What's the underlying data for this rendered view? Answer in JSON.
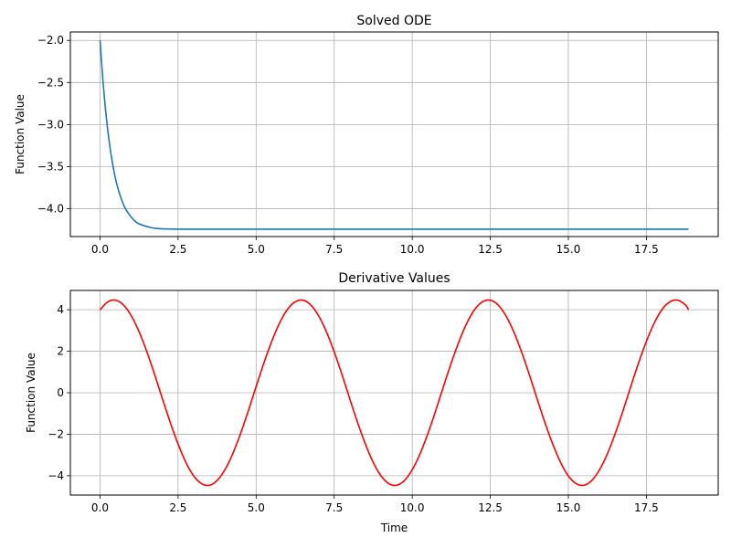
{
  "chart_data": [
    {
      "type": "line",
      "title": "Solved ODE",
      "xlabel": "",
      "ylabel": "Function Value",
      "xlim": [
        -0.95,
        19.8
      ],
      "ylim": [
        -4.33,
        -1.9
      ],
      "xticks": [
        0.0,
        2.5,
        5.0,
        7.5,
        10.0,
        12.5,
        15.0,
        17.5
      ],
      "xtick_labels": [
        "0.0",
        "2.5",
        "5.0",
        "7.5",
        "10.0",
        "12.5",
        "15.0",
        "17.5"
      ],
      "yticks": [
        -4.0,
        -3.5,
        -3.0,
        -2.5,
        -2.0
      ],
      "ytick_labels": [
        "−4.0",
        "−3.5",
        "−3.0",
        "−2.5",
        "−2.0"
      ],
      "grid": true,
      "series": [
        {
          "color": "#1f77b4",
          "x": [
            0.0,
            0.1,
            0.2,
            0.3,
            0.4,
            0.5,
            0.6,
            0.7,
            0.8,
            0.9,
            1.0,
            1.1,
            1.2,
            1.4,
            1.6,
            1.8,
            2.0,
            2.5,
            3.0,
            5.0,
            10.0,
            15.0,
            18.85
          ],
          "y": [
            -2.0,
            -2.51,
            -2.91,
            -3.22,
            -3.46,
            -3.65,
            -3.79,
            -3.9,
            -3.99,
            -4.05,
            -4.1,
            -4.14,
            -4.17,
            -4.2,
            -4.22,
            -4.233,
            -4.238,
            -4.242,
            -4.243,
            -4.243,
            -4.243,
            -4.243,
            -4.243
          ]
        }
      ]
    },
    {
      "type": "line",
      "title": "Derivative Values",
      "xlabel": "Time",
      "ylabel": "Function Value",
      "xlim": [
        -0.95,
        19.8
      ],
      "ylim": [
        -4.93,
        4.93
      ],
      "xticks": [
        0.0,
        2.5,
        5.0,
        7.5,
        10.0,
        12.5,
        15.0,
        17.5
      ],
      "xtick_labels": [
        "0.0",
        "2.5",
        "5.0",
        "7.5",
        "10.0",
        "12.5",
        "15.0",
        "17.5"
      ],
      "yticks": [
        -4,
        -2,
        0,
        2,
        4
      ],
      "ytick_labels": [
        "−4",
        "−2",
        "0",
        "2",
        "4"
      ],
      "grid": true,
      "series": [
        {
          "color": "#ff0000",
          "x": [
            0.0,
            0.25,
            0.5,
            0.75,
            1.0,
            1.25,
            1.5,
            1.75,
            2.0,
            2.25,
            2.5,
            2.75,
            3.0,
            3.25,
            3.5,
            3.75,
            4.0,
            4.25,
            4.5,
            4.75,
            5.0,
            5.25,
            5.5,
            5.75,
            6.0,
            6.25,
            6.5,
            6.75,
            7.0,
            7.25,
            7.5,
            7.75,
            8.0,
            8.25,
            8.5,
            8.75,
            9.0,
            9.25,
            9.5,
            9.75,
            10.0,
            10.25,
            10.5,
            10.75,
            11.0,
            11.25,
            11.5,
            11.75,
            12.0,
            12.25,
            12.5,
            12.75,
            13.0,
            13.25,
            13.5,
            13.75,
            14.0,
            14.25,
            14.5,
            14.75,
            15.0,
            15.25,
            15.5,
            15.75,
            16.0,
            16.25,
            16.5,
            16.75,
            17.0,
            17.25,
            17.5,
            17.75,
            18.0,
            18.25,
            18.5,
            18.75,
            18.85
          ],
          "y": [
            4.0,
            4.38,
            4.46,
            4.23,
            3.71,
            2.94,
            1.97,
            0.87,
            -0.3,
            -1.44,
            -2.48,
            -3.36,
            -4.01,
            -4.38,
            -4.46,
            -4.23,
            -3.71,
            -2.94,
            -1.97,
            -0.87,
            0.3,
            1.44,
            2.48,
            3.36,
            4.01,
            4.38,
            4.46,
            4.23,
            3.71,
            2.94,
            1.97,
            0.87,
            -0.3,
            -1.44,
            -2.48,
            -3.36,
            -4.01,
            -4.38,
            -4.46,
            -4.23,
            -3.71,
            -2.94,
            -1.97,
            -0.87,
            0.3,
            1.44,
            2.48,
            3.36,
            4.01,
            4.38,
            4.46,
            4.23,
            3.71,
            2.94,
            1.97,
            0.87,
            -0.3,
            -1.44,
            -2.48,
            -3.36,
            -4.01,
            -4.38,
            -4.46,
            -4.23,
            -3.71,
            -2.94,
            -1.97,
            -0.87,
            0.3,
            1.44,
            2.48,
            3.36,
            4.01,
            4.38,
            4.46,
            4.23,
            4.0
          ]
        }
      ]
    }
  ]
}
